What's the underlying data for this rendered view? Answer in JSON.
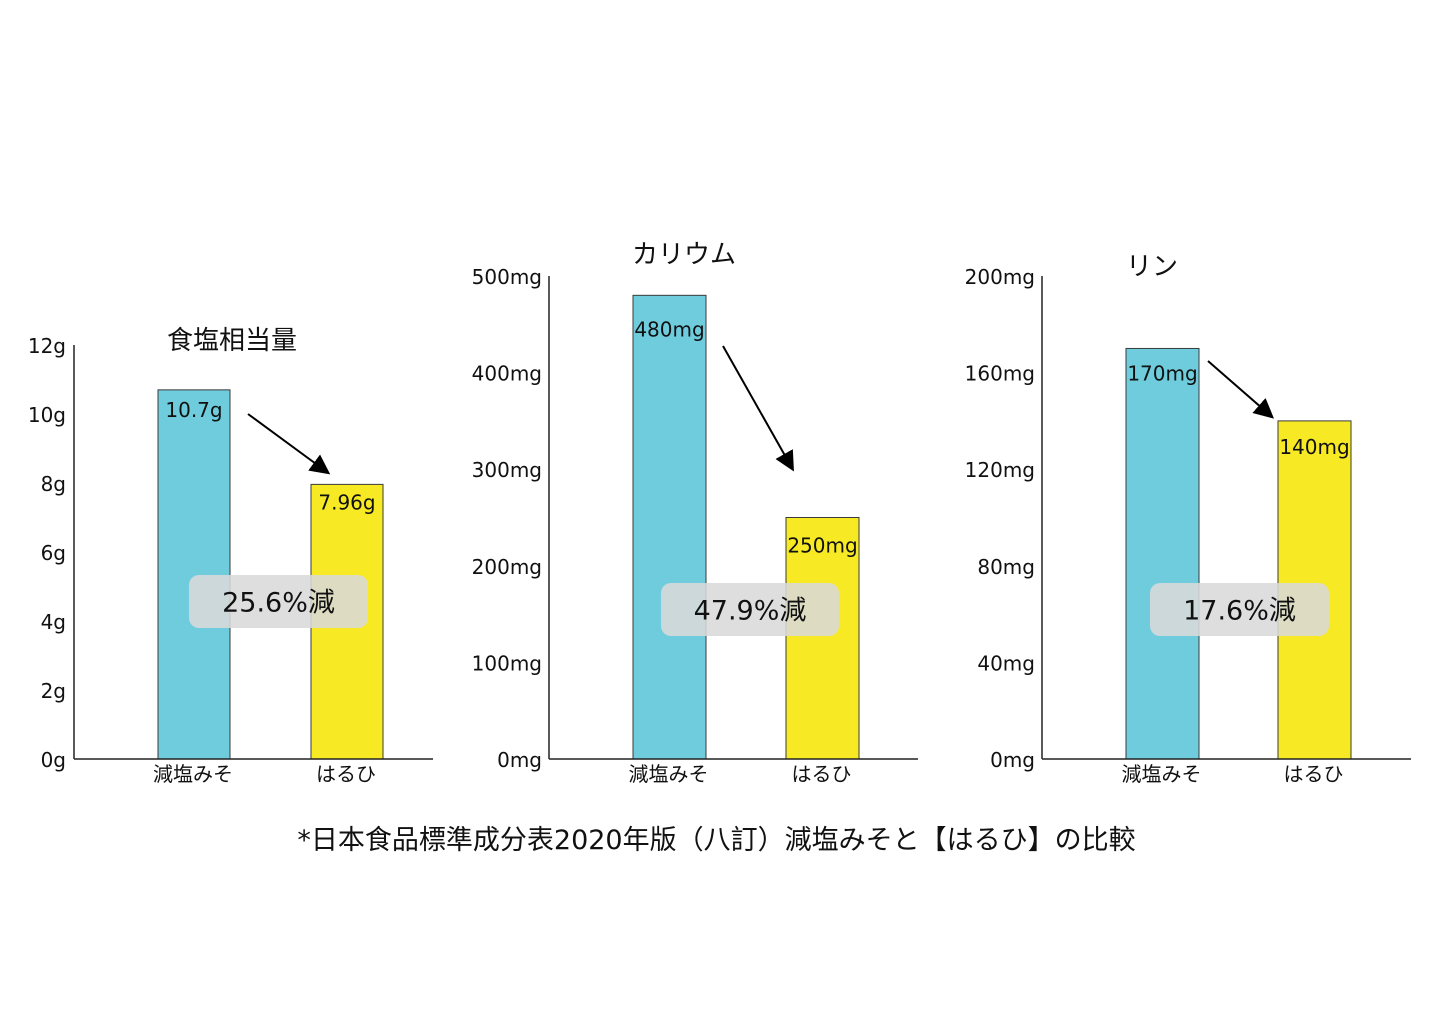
{
  "colors": {
    "before": "#6ECCDC",
    "after": "#F7EA24",
    "badge": "#D9D9D9",
    "axis": "#222222"
  },
  "chart_data": [
    {
      "type": "bar",
      "title": "食塩相当量",
      "categories": [
        "減塩みそ",
        "はるひ"
      ],
      "values": [
        10.7,
        7.96
      ],
      "value_labels": [
        "10.7g",
        "7.96g"
      ],
      "unit": "g",
      "ylim": [
        0,
        12
      ],
      "yticks": [
        0,
        2,
        4,
        6,
        8,
        10,
        12
      ],
      "ytick_labels": [
        "0g",
        "2g",
        "4g",
        "6g",
        "8g",
        "10g",
        "12g"
      ],
      "reduction_label": "25.6%減",
      "grid": false
    },
    {
      "type": "bar",
      "title": "カリウム",
      "categories": [
        "減塩みそ",
        "はるひ"
      ],
      "values": [
        480,
        250
      ],
      "value_labels": [
        "480mg",
        "250mg"
      ],
      "unit": "mg",
      "ylim": [
        0,
        500
      ],
      "yticks": [
        0,
        100,
        200,
        300,
        400,
        500
      ],
      "ytick_labels": [
        "0mg",
        "100mg",
        "200mg",
        "300mg",
        "400mg",
        "500mg"
      ],
      "reduction_label": "47.9%減",
      "grid": false
    },
    {
      "type": "bar",
      "title": "リン",
      "categories": [
        "減塩みそ",
        "はるひ"
      ],
      "values": [
        170,
        140
      ],
      "value_labels": [
        "170mg",
        "140mg"
      ],
      "unit": "mg",
      "ylim": [
        0,
        200
      ],
      "yticks": [
        0,
        40,
        80,
        120,
        160,
        200
      ],
      "ytick_labels": [
        "0mg",
        "40mg",
        "80mg",
        "120mg",
        "160mg",
        "200mg"
      ],
      "reduction_label": "17.6%減",
      "grid": false
    }
  ],
  "footnote": "*日本食品標準成分表2020年版（八訂）減塩みそと【はるひ】の比較"
}
